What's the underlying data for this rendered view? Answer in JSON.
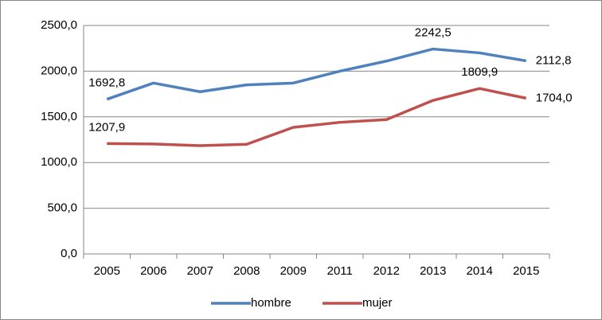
{
  "chart_data": {
    "type": "line",
    "categories": [
      "2005",
      "2006",
      "2007",
      "2008",
      "2009",
      "2011",
      "2012",
      "2013",
      "2014",
      "2015"
    ],
    "series": [
      {
        "name": "hombre",
        "color": "#4f81bd",
        "values": [
          1692.8,
          1870,
          1775,
          1850,
          1870,
          2000,
          2110,
          2242.5,
          2200,
          2112.8
        ],
        "value_labels": [
          "1692,8",
          null,
          null,
          null,
          null,
          null,
          null,
          "2242,5",
          null,
          "2112,8"
        ]
      },
      {
        "name": "mujer",
        "color": "#c0504d",
        "values": [
          1207.9,
          1203,
          1185,
          1200,
          1385,
          1440,
          1470,
          1680,
          1809.9,
          1704.0
        ],
        "value_labels": [
          "1207,9",
          null,
          null,
          null,
          null,
          null,
          null,
          null,
          "1809,9",
          "1704,0"
        ]
      }
    ],
    "ylim": [
      0,
      2500
    ],
    "yticks": [
      {
        "value": 0,
        "label": "0,0"
      },
      {
        "value": 500,
        "label": "500,0"
      },
      {
        "value": 1000,
        "label": "1000,0"
      },
      {
        "value": 1500,
        "label": "1500,0"
      },
      {
        "value": 2000,
        "label": "2000,0"
      },
      {
        "value": 2500,
        "label": "2500,0"
      }
    ],
    "grid": true,
    "legend": "bottom"
  }
}
